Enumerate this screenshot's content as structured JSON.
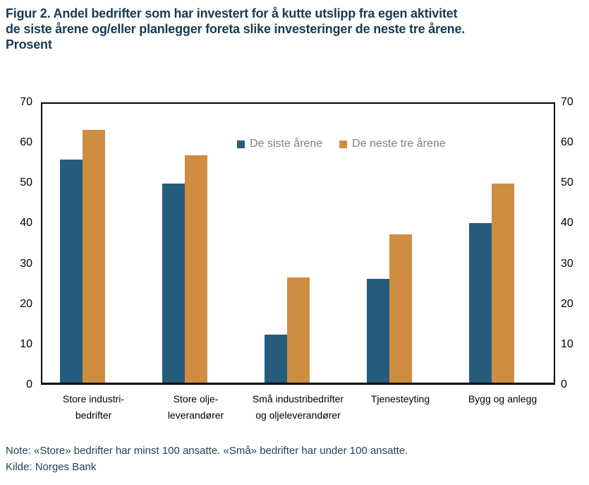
{
  "title": {
    "lines": [
      "Figur 2. Andel bedrifter som har investert for å kutte utslipp fra egen aktivitet",
      "de siste årene og/eller planlegger foreta slike investeringer de neste tre årene.",
      "Prosent"
    ]
  },
  "footer": {
    "note": "Note: «Store» bedrifter har minst 100 ansatte. «Små» bedrifter har under 100 ansatte.",
    "kilde": "Kilde: Norges Bank"
  },
  "colors": {
    "title_text": "#1A3A52",
    "note_text": "#1E4356",
    "axis_text": "#000000",
    "legend_text": "#7F7F7F",
    "frame": "#000000",
    "series_blue": "#265C7B",
    "series_orange": "#CF8D42"
  },
  "chart_data": {
    "type": "bar",
    "title": "Figur 2. Andel bedrifter som har investert for å kutte utslipp fra egen aktivitet de siste årene og/eller planlegger foreta slike investeringer de neste tre årene. Prosent",
    "ylabel": "Prosent",
    "categories": [
      "Store industri-bedrifter",
      "Store olje-leverandører",
      "Små industribedrifter og oljeleverandører",
      "Tjenesteyting",
      "Bygg og anlegg"
    ],
    "category_label_lines": [
      [
        "Store industri-",
        "bedrifter"
      ],
      [
        "Store olje-",
        "leverandører"
      ],
      [
        "Små industribedrifter",
        "og oljeleverandører"
      ],
      [
        "Tjenesteyting"
      ],
      [
        "Bygg og anlegg"
      ]
    ],
    "series": [
      {
        "name": "De siste årene",
        "color": "#265C7B",
        "values": [
          56,
          50,
          12,
          26,
          40
        ]
      },
      {
        "name": "De neste tre årene",
        "color": "#CF8D42",
        "values": [
          63.5,
          57,
          26.5,
          37.3,
          50
        ]
      }
    ],
    "ylim": [
      0,
      70
    ],
    "ytick_step": 10,
    "grid": false,
    "legend_position": "inside-top",
    "axis_sides": [
      "left",
      "right"
    ]
  }
}
